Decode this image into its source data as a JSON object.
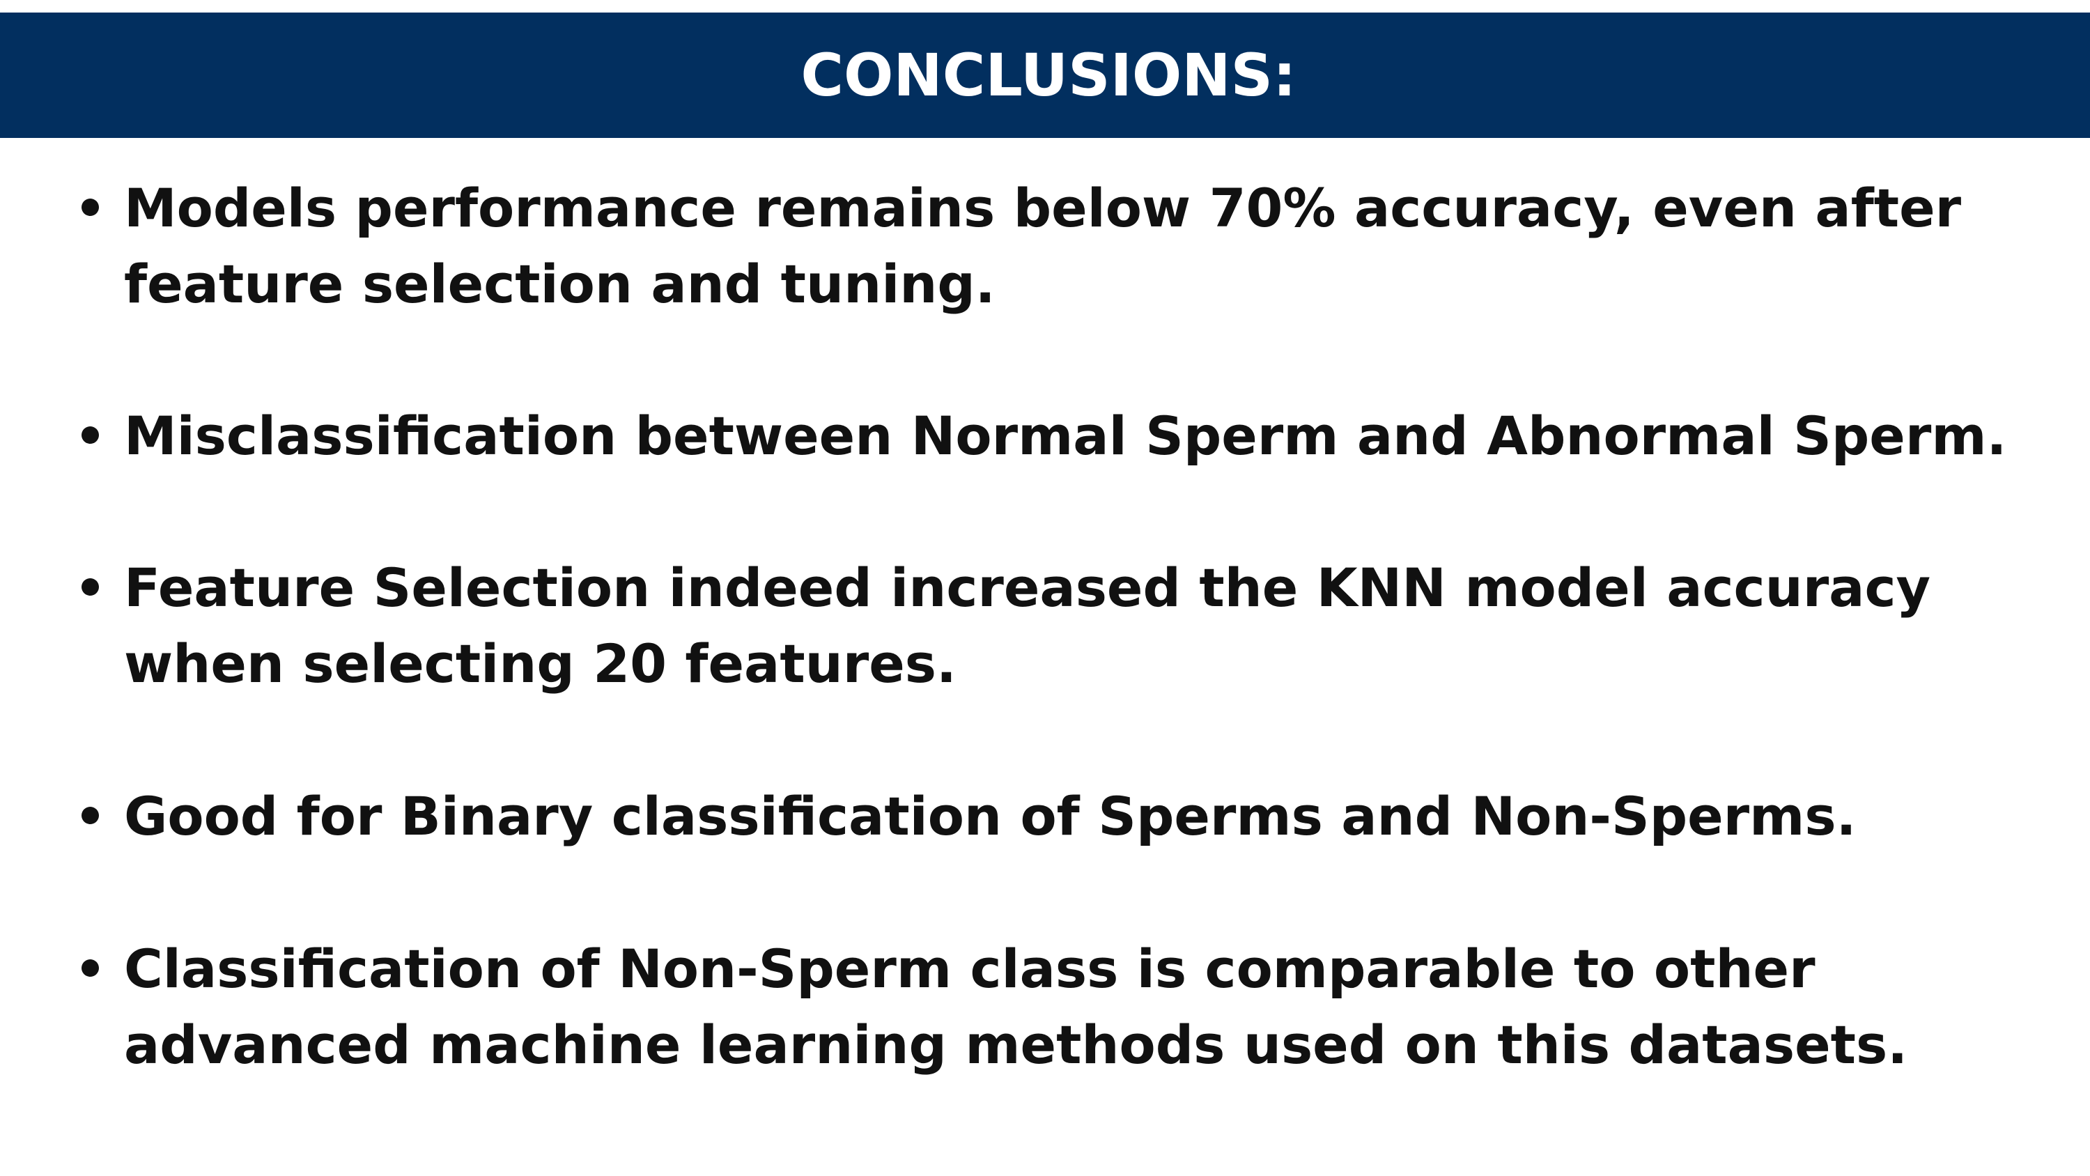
{
  "header": {
    "title": "CONCLUSIONS:",
    "background_color": "#022f5f",
    "text_color": "#ffffff"
  },
  "bullets": [
    {
      "text": "Models performance remains below 70% accuracy, even after feature selection and tuning."
    },
    {
      "text": "Misclassification between Normal Sperm and Abnormal Sperm."
    },
    {
      "text": "Feature Selection indeed increased the KNN model accuracy when selecting 20 features."
    },
    {
      "text": "Good for Binary classification of Sperms and Non-Sperms."
    },
    {
      "text": "Classification of Non-Sperm class is comparable to other advanced machine learning methods used on this datasets."
    }
  ],
  "colors": {
    "page_background": "#ffffff",
    "body_text": "#111111"
  }
}
